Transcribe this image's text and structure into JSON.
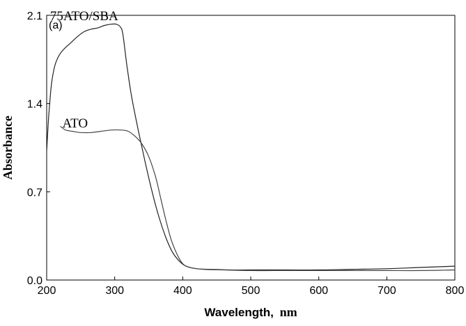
{
  "chart_data": {
    "type": "line",
    "panel_label": "(a)",
    "xlabel_main": "Wavelength,",
    "xlabel_unit": "nm",
    "ylabel": "Absorbance",
    "xlim": [
      200,
      800
    ],
    "ylim": [
      0,
      2.1
    ],
    "xticks": [
      "200",
      "300",
      "400",
      "500",
      "600",
      "700",
      "800"
    ],
    "yticks": [
      "0.0",
      "0.7",
      "1.4",
      "2.1"
    ],
    "xtick_values": [
      200,
      300,
      400,
      500,
      600,
      700,
      800
    ],
    "ytick_values": [
      0.0,
      0.7,
      1.4,
      2.1
    ],
    "series": [
      {
        "name": "75ATO/SBA",
        "color": "#222222",
        "label_at": [
          205,
          2.06
        ],
        "x": [
          200,
          203,
          207,
          212,
          218,
          225,
          235,
          245,
          255,
          265,
          275,
          285,
          295,
          302,
          308,
          312,
          318,
          325,
          335,
          345,
          355,
          365,
          375,
          385,
          395,
          405,
          420,
          440,
          470,
          500,
          550,
          600,
          650,
          700,
          750,
          800
        ],
        "y": [
          1.02,
          1.3,
          1.55,
          1.7,
          1.78,
          1.83,
          1.88,
          1.93,
          1.97,
          1.99,
          2.0,
          2.02,
          2.03,
          2.03,
          2.01,
          1.95,
          1.7,
          1.45,
          1.18,
          0.93,
          0.7,
          0.5,
          0.34,
          0.22,
          0.15,
          0.11,
          0.09,
          0.085,
          0.08,
          0.08,
          0.08,
          0.08,
          0.085,
          0.09,
          0.1,
          0.11
        ]
      },
      {
        "name": "ATO",
        "color": "#444444",
        "label_at": [
          223,
          1.21
        ],
        "x": [
          220,
          228,
          238,
          250,
          265,
          280,
          295,
          310,
          320,
          330,
          340,
          350,
          360,
          368,
          375,
          383,
          392,
          400,
          410,
          430,
          460,
          500,
          550,
          600,
          650,
          700,
          750,
          800
        ],
        "y": [
          1.22,
          1.19,
          1.18,
          1.17,
          1.17,
          1.18,
          1.19,
          1.19,
          1.18,
          1.14,
          1.08,
          0.98,
          0.82,
          0.64,
          0.48,
          0.32,
          0.2,
          0.13,
          0.1,
          0.085,
          0.08,
          0.075,
          0.075,
          0.075,
          0.075,
          0.075,
          0.075,
          0.08
        ]
      }
    ],
    "grid": false,
    "legend": "none"
  }
}
